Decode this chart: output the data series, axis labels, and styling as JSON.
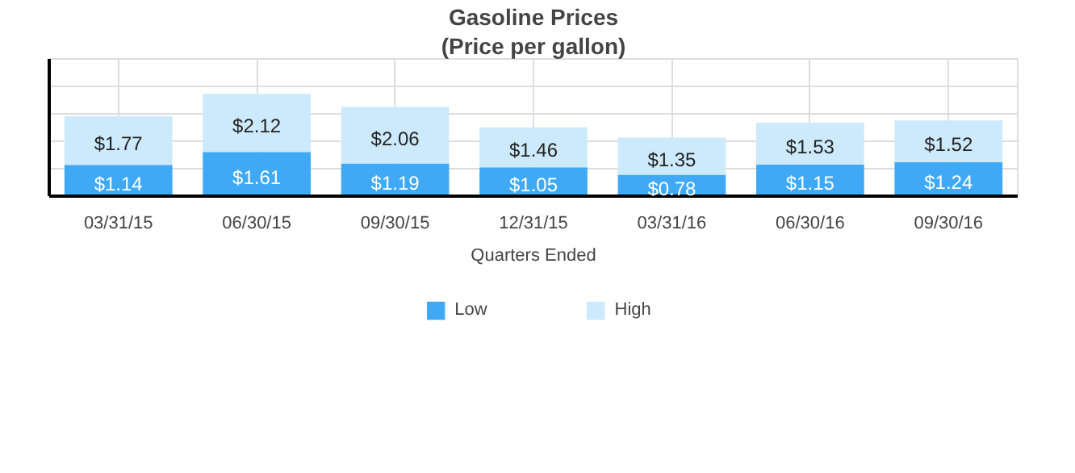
{
  "chart_data": {
    "type": "bar",
    "title": "Gasoline Prices",
    "subtitle": "(Price per gallon)",
    "xlabel": "Quarters Ended",
    "categories": [
      "03/31/15",
      "06/30/15",
      "09/30/15",
      "12/31/15",
      "03/31/16",
      "06/30/16",
      "09/30/16"
    ],
    "stacked": true,
    "series": [
      {
        "name": "Low",
        "color": "#3fa9f5",
        "values": [
          1.14,
          1.61,
          1.19,
          1.05,
          0.78,
          1.15,
          1.24
        ],
        "value_labels": [
          "$1.14",
          "$1.61",
          "$1.19",
          "$1.05",
          "$0.78",
          "$1.15",
          "$1.24"
        ]
      },
      {
        "name": "High",
        "color": "#cdeafc",
        "values": [
          1.77,
          2.12,
          2.06,
          1.46,
          1.35,
          1.53,
          1.52
        ],
        "value_labels": [
          "$1.77",
          "$2.12",
          "$2.06",
          "$1.46",
          "$1.35",
          "$1.53",
          "$1.52"
        ]
      }
    ],
    "ylim": [
      0,
      5
    ],
    "yticks": [
      {
        "value": 0,
        "label": null
      },
      {
        "value": 1,
        "label": null
      },
      {
        "value": 2,
        "label": null
      },
      {
        "value": 3,
        "label": null
      },
      {
        "value": 4,
        "label": null
      },
      {
        "value": 5,
        "label": null
      }
    ],
    "tick_labels": "x",
    "grid": true,
    "legend": "bottom"
  }
}
